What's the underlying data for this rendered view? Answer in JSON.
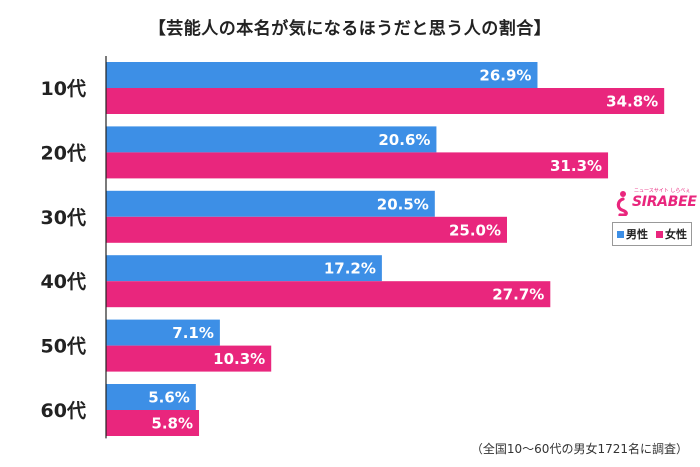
{
  "chart_data": {
    "type": "bar",
    "orientation": "horizontal",
    "title": "【芸能人の本名が気になるほうだと思う人の割合】",
    "categories": [
      "10代",
      "20代",
      "30代",
      "40代",
      "50代",
      "60代"
    ],
    "series": [
      {
        "name": "男性",
        "color": "#3d8fe6",
        "values": [
          26.9,
          20.6,
          20.5,
          17.2,
          7.1,
          5.6
        ]
      },
      {
        "name": "女性",
        "color": "#e9267d",
        "values": [
          34.8,
          31.3,
          25.0,
          27.7,
          10.3,
          5.8
        ]
      }
    ],
    "value_labels": [
      [
        "26.9%",
        "20.6%",
        "20.5%",
        "17.2%",
        "7.1%",
        "5.6%"
      ],
      [
        "34.8%",
        "31.3%",
        "25.0%",
        "27.7%",
        "10.3%",
        "5.8%"
      ]
    ],
    "xlim": [
      0,
      40
    ],
    "unit": "%",
    "grid": false,
    "legend_position": "right",
    "footnote": "（全国10～60代の男女1721名に調査）"
  },
  "branding": {
    "logo_text": "SIRABEE",
    "logo_tagline": "ニュースサイト しらべぇ"
  }
}
